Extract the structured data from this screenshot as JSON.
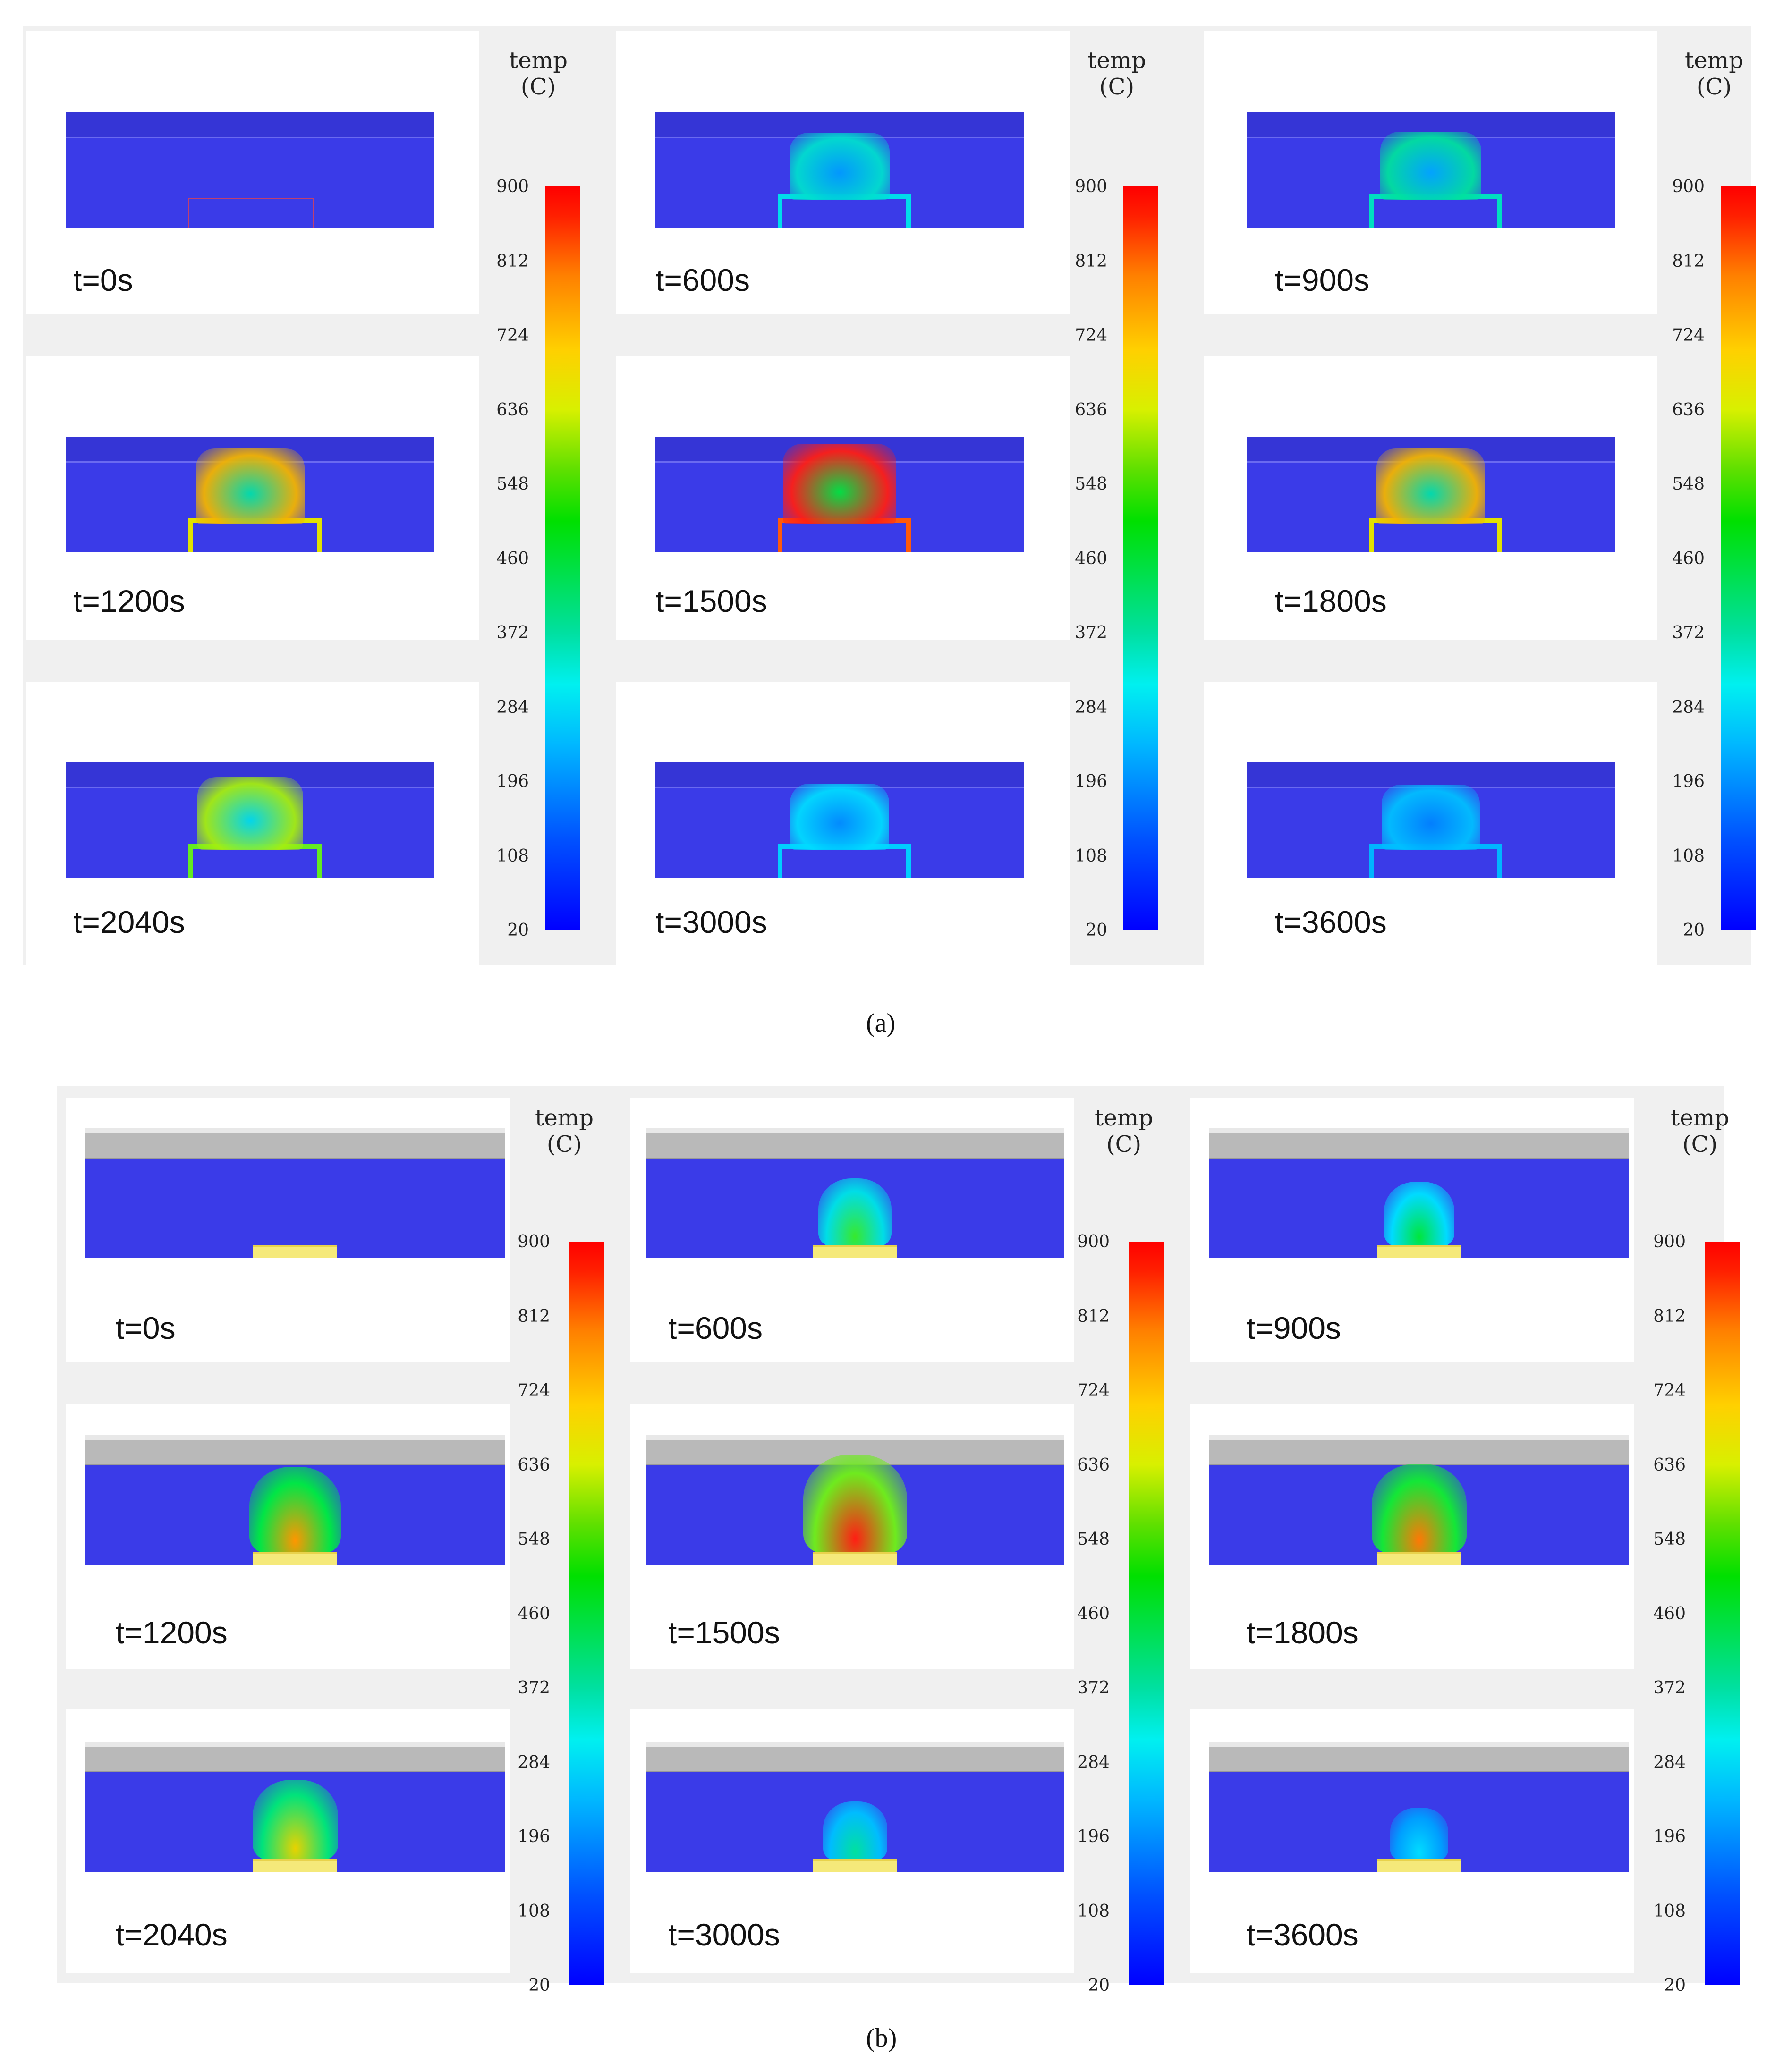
{
  "captions": {
    "a": "(a)",
    "b": "(b)"
  },
  "colorbar": {
    "title_line1": "temp",
    "title_line2": "(C)",
    "ticks": [
      "900",
      "812",
      "724",
      "636",
      "548",
      "460",
      "372",
      "284",
      "196",
      "108",
      "20"
    ],
    "range": [
      20,
      900
    ]
  },
  "colors": {
    "background_field": "#3a3be8",
    "hot": "#ff2a10",
    "source": "#f5e97a",
    "ceiling_plate": "#b9b9b9"
  },
  "panels": [
    {
      "id": "a",
      "frames": [
        {
          "label": "t=0s",
          "peak_level": 0
        },
        {
          "label": "t=600s",
          "peak_level": 0.3
        },
        {
          "label": "t=900s",
          "peak_level": 0.35
        },
        {
          "label": "t=1200s",
          "peak_level": 0.75
        },
        {
          "label": "t=1500s",
          "peak_level": 1.0
        },
        {
          "label": "t=1800s",
          "peak_level": 0.75
        },
        {
          "label": "t=2040s",
          "peak_level": 0.6
        },
        {
          "label": "t=3000s",
          "peak_level": 0.25
        },
        {
          "label": "t=3600s",
          "peak_level": 0.2
        }
      ]
    },
    {
      "id": "b",
      "frames": [
        {
          "label": "t=0s",
          "peak_level": 0
        },
        {
          "label": "t=600s",
          "peak_level": 0.5
        },
        {
          "label": "t=900s",
          "peak_level": 0.45
        },
        {
          "label": "t=1200s",
          "peak_level": 0.8
        },
        {
          "label": "t=1500s",
          "peak_level": 1.0
        },
        {
          "label": "t=1800s",
          "peak_level": 0.85
        },
        {
          "label": "t=2040s",
          "peak_level": 0.7
        },
        {
          "label": "t=3000s",
          "peak_level": 0.35
        },
        {
          "label": "t=3600s",
          "peak_level": 0.25
        }
      ]
    }
  ]
}
